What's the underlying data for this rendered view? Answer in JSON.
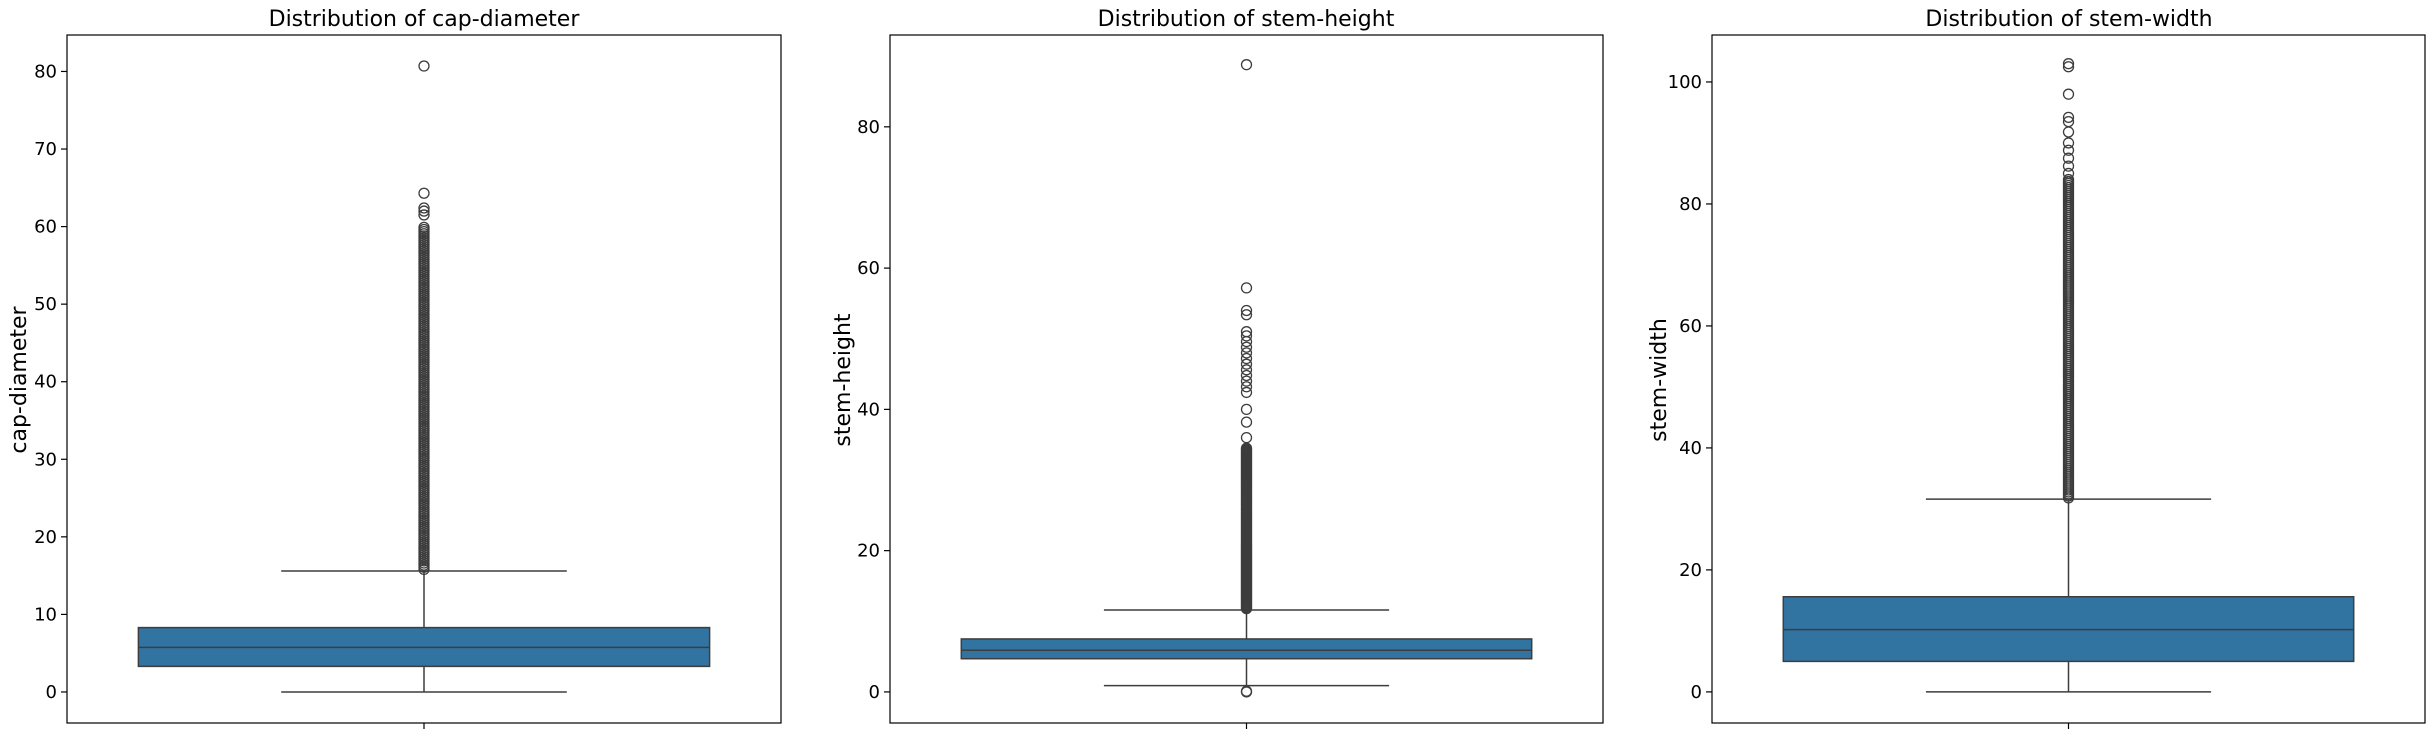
{
  "figure": {
    "box_color": "#3274a1",
    "line_color": "#3d3d3d",
    "background": "#ffffff"
  },
  "chart_data": [
    {
      "type": "box",
      "title": "Distribution of cap-diameter",
      "xlabel": "",
      "ylabel": "cap-diameter",
      "ylim": [
        -4.0,
        84.7
      ],
      "yticks": [
        0,
        10,
        20,
        30,
        40,
        50,
        60,
        70,
        80
      ],
      "grid": false,
      "box": {
        "whisker_low": 0.0,
        "q1": 3.3,
        "median": 5.75,
        "q3": 8.3,
        "whisker_high": 15.6
      },
      "outliers": {
        "dense_from": 15.8,
        "dense_to": 59.9,
        "points": [
          61.5,
          62.0,
          62.4,
          64.3,
          80.7
        ]
      }
    },
    {
      "type": "box",
      "title": "Distribution of stem-height",
      "xlabel": "",
      "ylabel": "stem-height",
      "ylim": [
        -4.4,
        93.0
      ],
      "yticks": [
        0,
        20,
        40,
        60,
        80
      ],
      "grid": false,
      "box": {
        "whisker_low": 0.9,
        "q1": 4.7,
        "median": 5.9,
        "q3": 7.5,
        "whisker_high": 11.6
      },
      "outliers": {
        "dense_from": 11.8,
        "dense_to": 34.5,
        "points": [
          0.0,
          0.1,
          36.0,
          38.2,
          40.0,
          42.4,
          43.2,
          44.0,
          44.8,
          45.6,
          46.4,
          47.2,
          48.0,
          48.8,
          49.6,
          50.4,
          51.0,
          53.4,
          54.0,
          57.2,
          88.8
        ]
      }
    },
    {
      "type": "box",
      "title": "Distribution of stem-width",
      "xlabel": "",
      "ylabel": "stem-width",
      "ylim": [
        -5.1,
        107.7
      ],
      "yticks": [
        0,
        20,
        40,
        60,
        80,
        100
      ],
      "grid": false,
      "box": {
        "whisker_low": 0.0,
        "q1": 5.0,
        "median": 10.2,
        "q3": 15.6,
        "whisker_high": 31.6
      },
      "outliers": {
        "dense_from": 31.8,
        "dense_to": 84.0,
        "points": [
          85.0,
          86.2,
          87.5,
          88.8,
          90.0,
          91.8,
          93.5,
          94.2,
          98.0,
          102.5,
          103.0
        ]
      }
    }
  ]
}
